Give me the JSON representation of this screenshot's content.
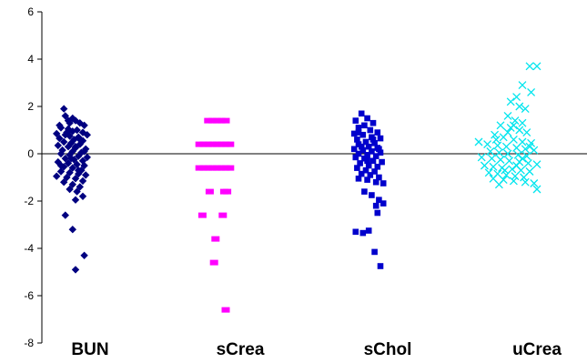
{
  "chart_data": {
    "type": "scatter",
    "title": "",
    "xlabel": "",
    "ylabel": "",
    "ylim": [
      -8,
      6
    ],
    "yticks": [
      6,
      4,
      2,
      0,
      -2,
      -4,
      -6,
      -8
    ],
    "grid": false,
    "legend": "none",
    "reference_line_y": 0,
    "categories": [
      "BUN",
      "sCrea",
      "sChol",
      "uCrea"
    ],
    "series": [
      {
        "category": "BUN",
        "marker": "diamond",
        "color": "#000080",
        "points": [
          [
            0.82,
            1.9
          ],
          [
            0.83,
            1.6
          ],
          [
            0.88,
            1.5
          ],
          [
            0.9,
            1.4
          ],
          [
            0.86,
            1.3
          ],
          [
            0.93,
            1.3
          ],
          [
            0.79,
            1.2
          ],
          [
            0.96,
            1.2
          ],
          [
            0.8,
            1.1
          ],
          [
            0.85,
            1.05
          ],
          [
            0.91,
            1.0
          ],
          [
            0.88,
            0.95
          ],
          [
            0.95,
            0.9
          ],
          [
            0.77,
            0.85
          ],
          [
            0.83,
            0.8
          ],
          [
            0.98,
            0.8
          ],
          [
            0.86,
            0.75
          ],
          [
            0.92,
            0.7
          ],
          [
            0.79,
            0.65
          ],
          [
            0.89,
            0.6
          ],
          [
            0.95,
            0.55
          ],
          [
            0.82,
            0.5
          ],
          [
            0.87,
            0.45
          ],
          [
            0.93,
            0.4
          ],
          [
            0.78,
            0.35
          ],
          [
            0.85,
            0.3
          ],
          [
            0.9,
            0.25
          ],
          [
            0.97,
            0.2
          ],
          [
            0.81,
            0.15
          ],
          [
            0.88,
            0.1
          ],
          [
            0.94,
            0.05
          ],
          [
            0.8,
            0.0
          ],
          [
            0.86,
            -0.05
          ],
          [
            0.92,
            -0.1
          ],
          [
            0.98,
            -0.15
          ],
          [
            0.83,
            -0.2
          ],
          [
            0.89,
            -0.25
          ],
          [
            0.95,
            -0.3
          ],
          [
            0.78,
            -0.35
          ],
          [
            0.85,
            -0.4
          ],
          [
            0.91,
            -0.45
          ],
          [
            0.96,
            -0.5
          ],
          [
            0.82,
            -0.55
          ],
          [
            0.88,
            -0.6
          ],
          [
            0.94,
            -0.7
          ],
          [
            0.8,
            -0.75
          ],
          [
            0.86,
            -0.8
          ],
          [
            0.92,
            -0.85
          ],
          [
            0.97,
            -0.9
          ],
          [
            0.77,
            -0.95
          ],
          [
            0.84,
            -1.0
          ],
          [
            0.9,
            -1.05
          ],
          [
            0.95,
            -1.15
          ],
          [
            0.82,
            -1.2
          ],
          [
            0.88,
            -1.3
          ],
          [
            0.93,
            -1.4
          ],
          [
            0.86,
            -1.5
          ],
          [
            0.91,
            -1.6
          ],
          [
            0.95,
            -1.8
          ],
          [
            0.9,
            -1.95
          ],
          [
            0.83,
            -2.6
          ],
          [
            0.88,
            -3.2
          ],
          [
            0.96,
            -4.3
          ],
          [
            0.9,
            -4.9
          ],
          [
            0.84,
            0.9
          ],
          [
            0.9,
            0.3
          ],
          [
            0.87,
            -0.2
          ],
          [
            0.93,
            0.6
          ],
          [
            0.8,
            -0.5
          ],
          [
            0.96,
            0.1
          ],
          [
            0.85,
            1.4
          ],
          [
            0.92,
            -0.7
          ]
        ]
      },
      {
        "category": "sCrea",
        "marker": "rectangle",
        "color": "#FF00FF",
        "points": [
          [
            1.78,
            1.4
          ],
          [
            1.81,
            1.4
          ],
          [
            1.84,
            1.4
          ],
          [
            1.87,
            1.4
          ],
          [
            1.9,
            1.4
          ],
          [
            1.72,
            0.4
          ],
          [
            1.75,
            0.4
          ],
          [
            1.78,
            0.4
          ],
          [
            1.81,
            0.4
          ],
          [
            1.84,
            0.4
          ],
          [
            1.87,
            0.4
          ],
          [
            1.9,
            0.4
          ],
          [
            1.93,
            0.4
          ],
          [
            1.72,
            -0.6
          ],
          [
            1.75,
            -0.6
          ],
          [
            1.78,
            -0.6
          ],
          [
            1.81,
            -0.6
          ],
          [
            1.84,
            -0.6
          ],
          [
            1.87,
            -0.6
          ],
          [
            1.9,
            -0.6
          ],
          [
            1.93,
            -0.6
          ],
          [
            1.79,
            -1.6
          ],
          [
            1.89,
            -1.6
          ],
          [
            1.91,
            -1.6
          ],
          [
            1.74,
            -2.6
          ],
          [
            1.88,
            -2.6
          ],
          [
            1.83,
            -3.6
          ],
          [
            1.82,
            -4.6
          ],
          [
            1.9,
            -6.6
          ]
        ]
      },
      {
        "category": "sChol",
        "marker": "square",
        "color": "#0000CC",
        "points": [
          [
            2.82,
            1.7
          ],
          [
            2.86,
            1.5
          ],
          [
            2.78,
            1.4
          ],
          [
            2.9,
            1.3
          ],
          [
            2.84,
            1.2
          ],
          [
            2.8,
            1.1
          ],
          [
            2.88,
            1.0
          ],
          [
            2.93,
            0.9
          ],
          [
            2.77,
            0.85
          ],
          [
            2.83,
            0.8
          ],
          [
            2.89,
            0.7
          ],
          [
            2.95,
            0.65
          ],
          [
            2.79,
            0.6
          ],
          [
            2.85,
            0.5
          ],
          [
            2.91,
            0.45
          ],
          [
            2.8,
            0.4
          ],
          [
            2.87,
            0.3
          ],
          [
            2.93,
            0.25
          ],
          [
            2.77,
            0.2
          ],
          [
            2.83,
            0.15
          ],
          [
            2.89,
            0.1
          ],
          [
            2.95,
            0.05
          ],
          [
            2.8,
            0.0
          ],
          [
            2.86,
            -0.05
          ],
          [
            2.92,
            -0.1
          ],
          [
            2.78,
            -0.15
          ],
          [
            2.84,
            -0.2
          ],
          [
            2.9,
            -0.3
          ],
          [
            2.96,
            -0.35
          ],
          [
            2.81,
            -0.4
          ],
          [
            2.87,
            -0.5
          ],
          [
            2.93,
            -0.55
          ],
          [
            2.79,
            -0.6
          ],
          [
            2.85,
            -0.7
          ],
          [
            2.91,
            -0.75
          ],
          [
            2.82,
            -0.85
          ],
          [
            2.88,
            -0.9
          ],
          [
            2.94,
            -1.0
          ],
          [
            2.8,
            -1.05
          ],
          [
            2.86,
            -1.1
          ],
          [
            2.92,
            -1.2
          ],
          [
            2.97,
            -1.25
          ],
          [
            2.84,
            -1.6
          ],
          [
            2.89,
            -1.75
          ],
          [
            2.94,
            -1.95
          ],
          [
            2.97,
            -2.1
          ],
          [
            2.92,
            -2.2
          ],
          [
            2.93,
            -2.5
          ],
          [
            2.78,
            -3.3
          ],
          [
            2.83,
            -3.35
          ],
          [
            2.87,
            -3.25
          ],
          [
            2.91,
            -4.15
          ],
          [
            2.95,
            -4.75
          ],
          [
            2.82,
            0.3
          ],
          [
            2.9,
            0.6
          ],
          [
            2.86,
            -0.3
          ],
          [
            2.8,
            0.9
          ],
          [
            2.94,
            0.2
          ]
        ]
      },
      {
        "category": "uCrea",
        "marker": "x",
        "color": "#00E5EE",
        "points": [
          [
            3.95,
            3.7
          ],
          [
            4.0,
            3.7
          ],
          [
            3.9,
            2.9
          ],
          [
            3.86,
            2.4
          ],
          [
            3.96,
            2.6
          ],
          [
            3.82,
            2.2
          ],
          [
            3.88,
            2.0
          ],
          [
            3.92,
            1.9
          ],
          [
            3.8,
            1.6
          ],
          [
            3.85,
            1.4
          ],
          [
            3.9,
            1.3
          ],
          [
            3.75,
            1.2
          ],
          [
            3.82,
            1.1
          ],
          [
            3.88,
            1.0
          ],
          [
            3.93,
            0.9
          ],
          [
            3.71,
            0.8
          ],
          [
            3.77,
            0.7
          ],
          [
            3.84,
            0.6
          ],
          [
            3.9,
            0.5
          ],
          [
            3.96,
            0.45
          ],
          [
            3.66,
            0.4
          ],
          [
            3.73,
            0.35
          ],
          [
            3.79,
            0.3
          ],
          [
            3.86,
            0.25
          ],
          [
            3.92,
            0.2
          ],
          [
            3.98,
            0.15
          ],
          [
            3.6,
            0.5
          ],
          [
            3.68,
            0.1
          ],
          [
            3.74,
            0.05
          ],
          [
            3.8,
            0.0
          ],
          [
            3.87,
            -0.05
          ],
          [
            3.93,
            -0.1
          ],
          [
            3.62,
            -0.15
          ],
          [
            3.69,
            -0.2
          ],
          [
            3.75,
            -0.25
          ],
          [
            3.81,
            -0.3
          ],
          [
            3.88,
            -0.35
          ],
          [
            3.94,
            -0.4
          ],
          [
            4.0,
            -0.45
          ],
          [
            3.64,
            -0.5
          ],
          [
            3.7,
            -0.55
          ],
          [
            3.76,
            -0.6
          ],
          [
            3.83,
            -0.65
          ],
          [
            3.89,
            -0.7
          ],
          [
            3.95,
            -0.75
          ],
          [
            3.67,
            -0.8
          ],
          [
            3.73,
            -0.85
          ],
          [
            3.79,
            -0.9
          ],
          [
            3.85,
            -0.95
          ],
          [
            3.91,
            -1.0
          ],
          [
            3.7,
            -1.05
          ],
          [
            3.77,
            -1.1
          ],
          [
            3.84,
            -1.15
          ],
          [
            3.92,
            -1.2
          ],
          [
            3.98,
            -1.25
          ],
          [
            3.74,
            -1.3
          ],
          [
            4.0,
            -1.5
          ],
          [
            3.8,
            0.9
          ],
          [
            3.86,
            -0.5
          ],
          [
            3.72,
            0.6
          ],
          [
            3.9,
            -0.2
          ],
          [
            3.78,
            -0.7
          ],
          [
            3.84,
            1.2
          ],
          [
            3.95,
            0.3
          ]
        ]
      }
    ]
  }
}
